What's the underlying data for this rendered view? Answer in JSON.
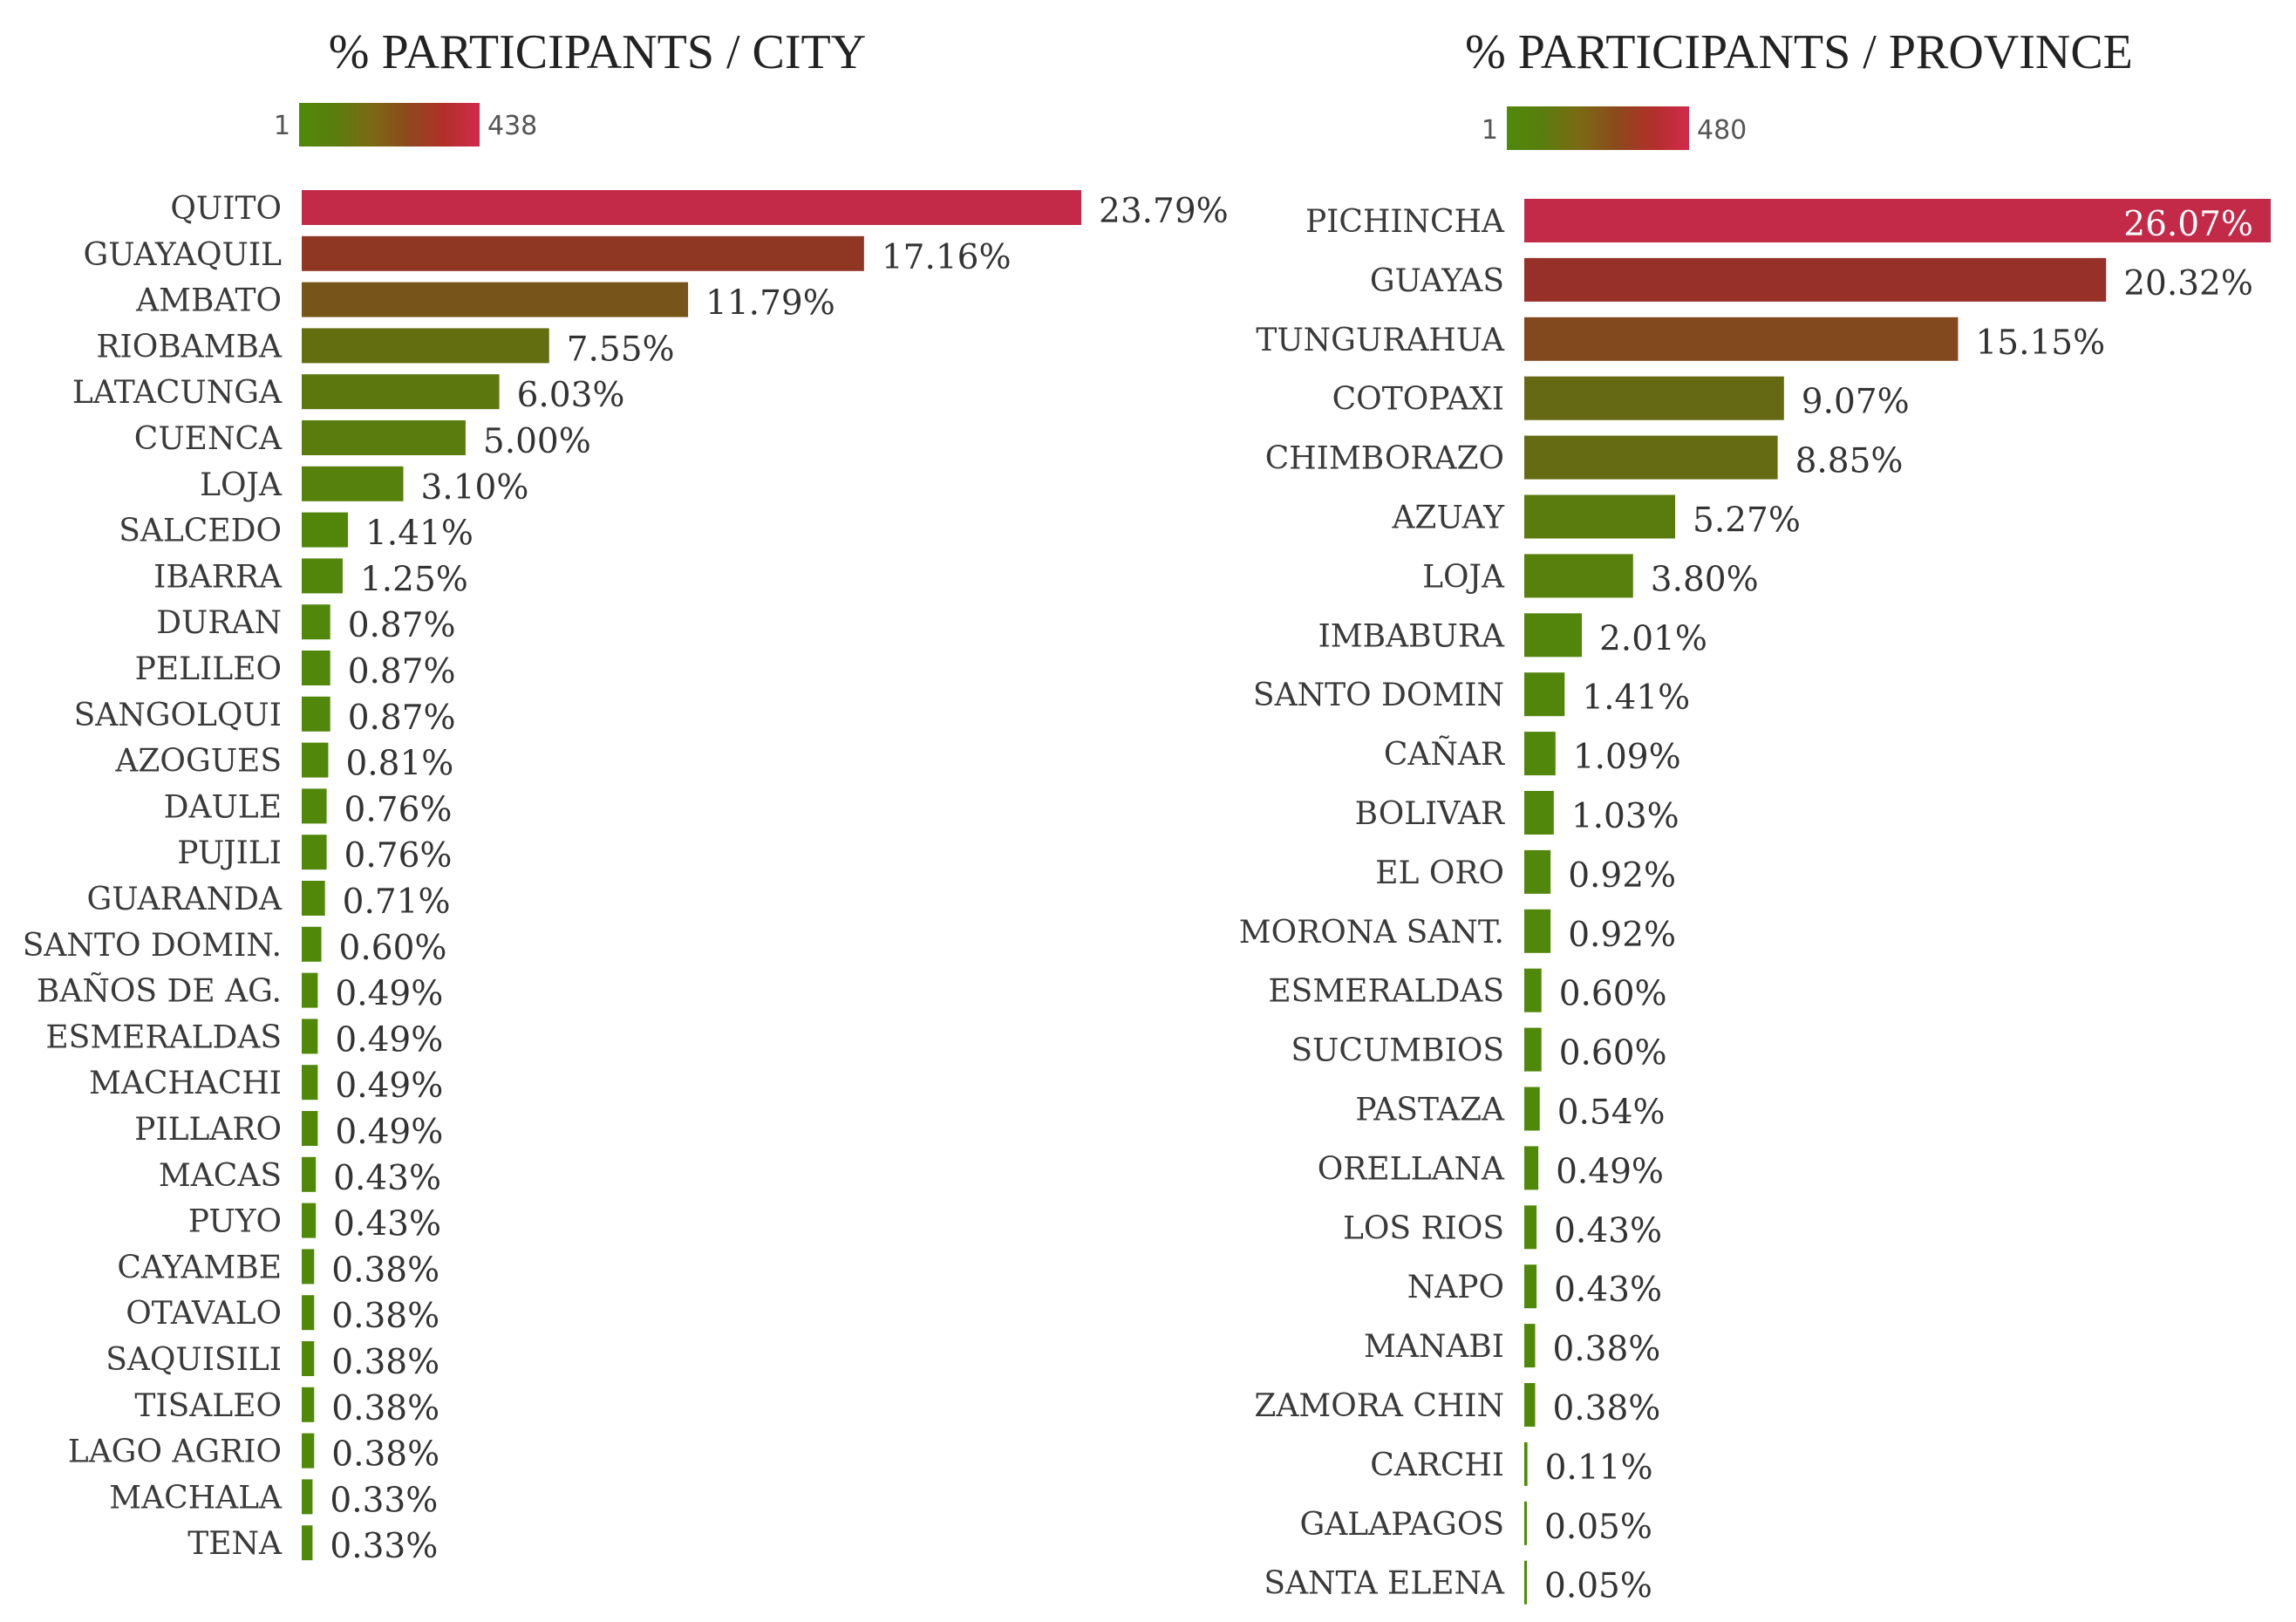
{
  "chart_data": [
    {
      "type": "bar",
      "orientation": "horizontal",
      "title": "% PARTICIPANTS / CITY",
      "legend": {
        "min_label": "1",
        "max_label": "438",
        "colors": [
          "#4f8a0a",
          "#7b5a1a",
          "#c0294a"
        ]
      },
      "xlim": [
        0,
        23.79
      ],
      "categories": [
        "QUITO",
        "GUAYAQUIL",
        "AMBATO",
        "RIOBAMBA",
        "LATACUNGA",
        "CUENCA",
        "LOJA",
        "SALCEDO",
        "IBARRA",
        "DURAN",
        "PELILEO",
        "SANGOLQUI",
        "AZOGUES",
        "DAULE",
        "PUJILI",
        "GUARANDA",
        "SANTO DOMIN.",
        "BAÑOS DE AG.",
        "ESMERALDAS",
        "MACHACHI",
        "PILLARO",
        "MACAS",
        "PUYO",
        "CAYAMBE",
        "OTAVALO",
        "SAQUISILI",
        "TISALEO",
        "LAGO AGRIO",
        "MACHALA",
        "TENA"
      ],
      "values": [
        23.79,
        17.16,
        11.79,
        7.55,
        6.03,
        5.0,
        3.1,
        1.41,
        1.25,
        0.87,
        0.87,
        0.87,
        0.81,
        0.76,
        0.76,
        0.71,
        0.6,
        0.49,
        0.49,
        0.49,
        0.49,
        0.43,
        0.43,
        0.38,
        0.38,
        0.38,
        0.38,
        0.38,
        0.33,
        0.33
      ],
      "value_labels": [
        "23.79%",
        "17.16%",
        "11.79%",
        "7.55%",
        "6.03%",
        "5.00%",
        "3.10%",
        "1.41%",
        "1.25%",
        "0.87%",
        "0.87%",
        "0.87%",
        "0.81%",
        "0.76%",
        "0.76%",
        "0.71%",
        "0.60%",
        "0.49%",
        "0.49%",
        "0.49%",
        "0.49%",
        "0.43%",
        "0.43%",
        "0.38%",
        "0.38%",
        "0.38%",
        "0.38%",
        "0.38%",
        "0.33%",
        "0.33%"
      ]
    },
    {
      "type": "bar",
      "orientation": "horizontal",
      "title": "% PARTICIPANTS / PROVINCE",
      "legend": {
        "min_label": "1",
        "max_label": "480",
        "colors": [
          "#4f8a0a",
          "#7b5a1a",
          "#c0294a"
        ]
      },
      "xlim": [
        0,
        26.07
      ],
      "categories": [
        "PICHINCHA",
        "GUAYAS",
        "TUNGURAHUA",
        "COTOPAXI",
        "CHIMBORAZO",
        "AZUAY",
        "LOJA",
        "IMBABURA",
        "SANTO DOMIN",
        "CAÑAR",
        "BOLIVAR",
        "EL ORO",
        "MORONA SANT.",
        "ESMERALDAS",
        "SUCUMBIOS",
        "PASTAZA",
        "ORELLANA",
        "LOS RIOS",
        "NAPO",
        "MANABI",
        "ZAMORA CHIN",
        "CARCHI",
        "GALAPAGOS",
        "SANTA ELENA"
      ],
      "values": [
        26.07,
        20.32,
        15.15,
        9.07,
        8.85,
        5.27,
        3.8,
        2.01,
        1.41,
        1.09,
        1.03,
        0.92,
        0.92,
        0.6,
        0.6,
        0.54,
        0.49,
        0.43,
        0.43,
        0.38,
        0.38,
        0.11,
        0.05,
        0.05
      ],
      "value_labels": [
        "26.07%",
        "20.32%",
        "15.15%",
        "9.07%",
        "8.85%",
        "5.27%",
        "3.80%",
        "2.01%",
        "1.41%",
        "1.09%",
        "1.03%",
        "0.92%",
        "0.92%",
        "0.60%",
        "0.60%",
        "0.54%",
        "0.49%",
        "0.43%",
        "0.43%",
        "0.38%",
        "0.38%",
        "0.11%",
        "0.05%",
        "0.05%"
      ]
    }
  ]
}
